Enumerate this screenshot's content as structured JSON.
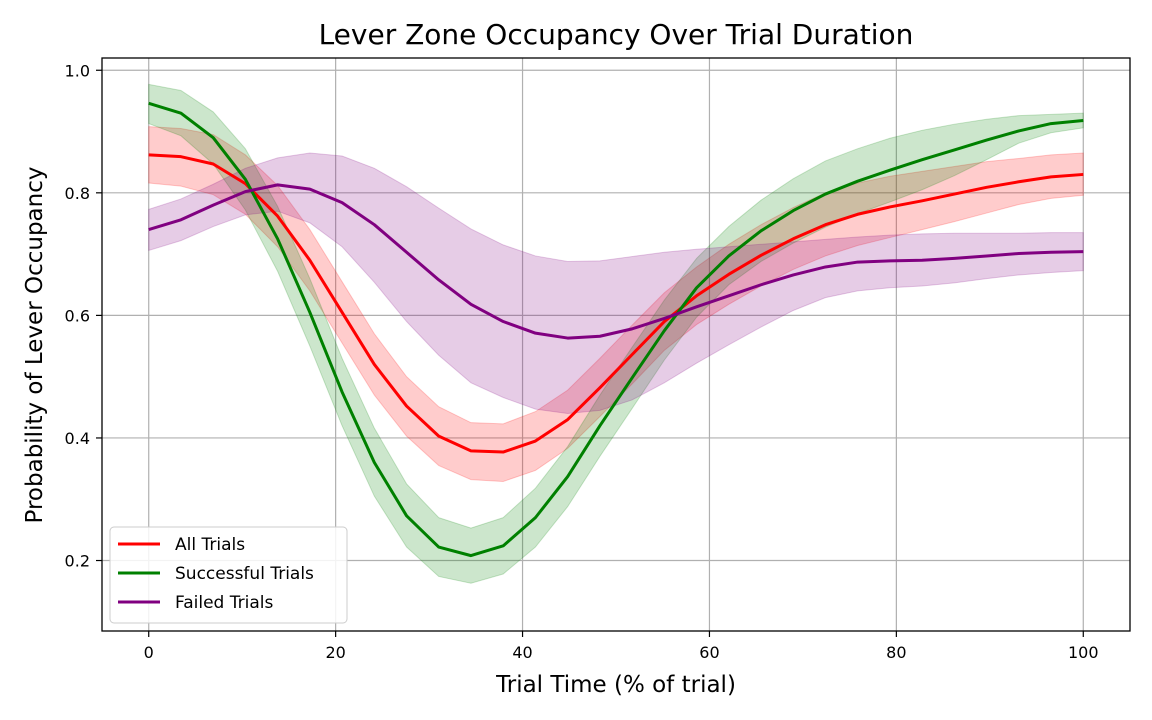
{
  "chart_data": {
    "type": "line",
    "title": "Lever Zone Occupancy Over Trial Duration",
    "xlabel": "Trial Time (% of trial)",
    "ylabel": "Probability of Lever Occupancy",
    "xlim": [
      -5,
      105
    ],
    "ylim": [
      0.085,
      1.02
    ],
    "xticks": [
      0,
      20,
      40,
      60,
      80,
      100
    ],
    "yticks": [
      0.2,
      0.4,
      0.6,
      0.8,
      1.0
    ],
    "ytick_labels": [
      "0.2",
      "0.4",
      "0.6",
      "0.8",
      "1.0"
    ],
    "grid": true,
    "legend_position": "lower-left",
    "x": [
      0,
      3.45,
      6.9,
      10.34,
      13.79,
      17.24,
      20.69,
      24.14,
      27.59,
      31.03,
      34.48,
      37.93,
      41.38,
      44.83,
      48.28,
      51.72,
      55.17,
      58.62,
      62.07,
      65.52,
      68.97,
      72.41,
      75.86,
      79.31,
      82.76,
      86.21,
      89.66,
      93.1,
      96.55,
      100
    ],
    "series": [
      {
        "name": "All Trials",
        "color": "#ff0000",
        "values": [
          0.862,
          0.859,
          0.847,
          0.815,
          0.762,
          0.69,
          0.605,
          0.52,
          0.452,
          0.403,
          0.379,
          0.377,
          0.395,
          0.43,
          0.482,
          0.536,
          0.59,
          0.632,
          0.667,
          0.698,
          0.725,
          0.748,
          0.765,
          0.777,
          0.787,
          0.798,
          0.809,
          0.818,
          0.826,
          0.83
        ],
        "lower": [
          0.816,
          0.811,
          0.797,
          0.765,
          0.712,
          0.64,
          0.555,
          0.47,
          0.403,
          0.355,
          0.332,
          0.329,
          0.347,
          0.383,
          0.435,
          0.488,
          0.543,
          0.585,
          0.618,
          0.648,
          0.675,
          0.697,
          0.714,
          0.727,
          0.74,
          0.753,
          0.767,
          0.781,
          0.791,
          0.796
        ],
        "upper": [
          0.908,
          0.905,
          0.895,
          0.862,
          0.812,
          0.74,
          0.655,
          0.57,
          0.5,
          0.451,
          0.425,
          0.423,
          0.443,
          0.478,
          0.53,
          0.584,
          0.637,
          0.679,
          0.716,
          0.748,
          0.776,
          0.8,
          0.816,
          0.827,
          0.835,
          0.843,
          0.851,
          0.856,
          0.862,
          0.865
        ]
      },
      {
        "name": "Successful Trials",
        "color": "#008000",
        "values": [
          0.946,
          0.93,
          0.89,
          0.822,
          0.725,
          0.605,
          0.475,
          0.36,
          0.273,
          0.222,
          0.208,
          0.224,
          0.27,
          0.337,
          0.42,
          0.498,
          0.575,
          0.645,
          0.697,
          0.738,
          0.771,
          0.798,
          0.819,
          0.837,
          0.854,
          0.87,
          0.886,
          0.901,
          0.913,
          0.918
        ],
        "lower": [
          0.913,
          0.893,
          0.847,
          0.772,
          0.672,
          0.55,
          0.42,
          0.305,
          0.222,
          0.174,
          0.163,
          0.178,
          0.222,
          0.288,
          0.37,
          0.448,
          0.527,
          0.597,
          0.65,
          0.688,
          0.718,
          0.744,
          0.766,
          0.785,
          0.805,
          0.828,
          0.854,
          0.881,
          0.898,
          0.906
        ],
        "upper": [
          0.977,
          0.967,
          0.932,
          0.872,
          0.778,
          0.66,
          0.53,
          0.416,
          0.325,
          0.27,
          0.253,
          0.27,
          0.318,
          0.386,
          0.47,
          0.548,
          0.625,
          0.693,
          0.745,
          0.788,
          0.823,
          0.852,
          0.872,
          0.889,
          0.902,
          0.912,
          0.92,
          0.926,
          0.928,
          0.93
        ]
      },
      {
        "name": "Failed Trials",
        "color": "#800080",
        "values": [
          0.74,
          0.756,
          0.78,
          0.802,
          0.813,
          0.806,
          0.784,
          0.748,
          0.703,
          0.658,
          0.618,
          0.59,
          0.571,
          0.563,
          0.566,
          0.578,
          0.595,
          0.614,
          0.632,
          0.65,
          0.666,
          0.679,
          0.687,
          0.689,
          0.69,
          0.693,
          0.697,
          0.701,
          0.703,
          0.704
        ],
        "lower": [
          0.706,
          0.722,
          0.745,
          0.764,
          0.77,
          0.751,
          0.712,
          0.654,
          0.59,
          0.535,
          0.49,
          0.466,
          0.447,
          0.44,
          0.445,
          0.462,
          0.49,
          0.522,
          0.552,
          0.581,
          0.608,
          0.629,
          0.64,
          0.645,
          0.648,
          0.653,
          0.66,
          0.666,
          0.67,
          0.673
        ],
        "upper": [
          0.773,
          0.79,
          0.814,
          0.84,
          0.857,
          0.865,
          0.86,
          0.84,
          0.81,
          0.775,
          0.741,
          0.715,
          0.697,
          0.688,
          0.689,
          0.696,
          0.703,
          0.708,
          0.712,
          0.716,
          0.72,
          0.724,
          0.728,
          0.731,
          0.733,
          0.734,
          0.734,
          0.734,
          0.735,
          0.735
        ]
      }
    ]
  }
}
